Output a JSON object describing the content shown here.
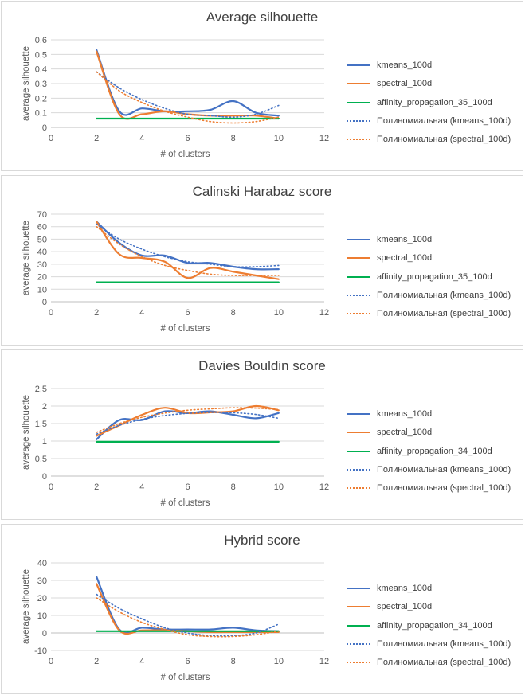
{
  "colors": {
    "kmeans": "#4472C4",
    "spectral": "#ED7D31",
    "affinity": "#00B050",
    "grid": "#d9d9d9",
    "axis": "#bfbfbf"
  },
  "chart_data": [
    {
      "type": "line",
      "title": "Average silhouette",
      "xlabel": "# of clusters",
      "ylabel": "average silhouette",
      "xlim": [
        0,
        12
      ],
      "ylim": [
        0,
        0.6
      ],
      "xticks": [
        0,
        2,
        4,
        6,
        8,
        10,
        12
      ],
      "yticks": [
        0,
        0.1,
        0.2,
        0.3,
        0.4,
        0.5,
        0.6
      ],
      "xtick_labels": [
        "0",
        "2",
        "4",
        "6",
        "8",
        "10",
        "12"
      ],
      "ytick_labels": [
        "0",
        "0,1",
        "0,2",
        "0,3",
        "0,4",
        "0,5",
        "0,6"
      ],
      "legend_position": "right",
      "x": [
        2,
        3,
        4,
        5,
        6,
        7,
        8,
        9,
        10
      ],
      "series": [
        {
          "name": "kmeans_100d",
          "style": "solid",
          "color": "kmeans",
          "values": [
            0.53,
            0.11,
            0.13,
            0.11,
            0.11,
            0.12,
            0.18,
            0.1,
            0.08
          ]
        },
        {
          "name": "spectral_100d",
          "style": "solid",
          "color": "spectral",
          "values": [
            0.52,
            0.09,
            0.09,
            0.11,
            0.09,
            0.08,
            0.08,
            0.08,
            0.06
          ]
        },
        {
          "name": "affinity_propagation_35_100d",
          "style": "solid",
          "color": "affinity",
          "values": [
            0.06,
            0.06,
            0.06,
            0.06,
            0.06,
            0.06,
            0.06,
            0.06,
            0.06
          ]
        },
        {
          "name": "Полиномиальная (kmeans_100d)",
          "style": "dotted",
          "color": "kmeans",
          "values": [
            0.38,
            0.27,
            0.19,
            0.13,
            0.09,
            0.08,
            0.07,
            0.09,
            0.15
          ]
        },
        {
          "name": "Полиномиальная (spectral_100d)",
          "style": "dotted",
          "color": "spectral",
          "values": [
            0.38,
            0.25,
            0.17,
            0.11,
            0.07,
            0.04,
            0.03,
            0.04,
            0.07
          ]
        }
      ]
    },
    {
      "type": "line",
      "title": "Calinski Harabaz score",
      "xlabel": "# of clusters",
      "ylabel": "average silhouette",
      "xlim": [
        0,
        12
      ],
      "ylim": [
        0,
        70
      ],
      "xticks": [
        0,
        2,
        4,
        6,
        8,
        10,
        12
      ],
      "yticks": [
        0,
        10,
        20,
        30,
        40,
        50,
        60,
        70
      ],
      "xtick_labels": [
        "0",
        "2",
        "4",
        "6",
        "8",
        "10",
        "12"
      ],
      "ytick_labels": [
        "0",
        "10",
        "20",
        "30",
        "40",
        "50",
        "60",
        "70"
      ],
      "legend_position": "right",
      "x": [
        2,
        3,
        4,
        5,
        6,
        7,
        8,
        9,
        10
      ],
      "series": [
        {
          "name": "kmeans_100d",
          "style": "solid",
          "color": "kmeans",
          "values": [
            64,
            47,
            37,
            37,
            31,
            31,
            28,
            26,
            26
          ]
        },
        {
          "name": "spectral_100d",
          "style": "solid",
          "color": "spectral",
          "values": [
            64,
            38,
            35,
            32,
            19,
            27,
            24,
            21,
            18
          ]
        },
        {
          "name": "affinity_propagation_35_100d",
          "style": "solid",
          "color": "affinity",
          "values": [
            15.5,
            15.5,
            15.5,
            15.5,
            15.5,
            15.5,
            15.5,
            15.5,
            15.5
          ]
        },
        {
          "name": "Полиномиальная (kmeans_100d)",
          "style": "dotted",
          "color": "kmeans",
          "values": [
            62,
            50,
            42,
            36,
            32,
            30,
            28,
            28,
            29
          ]
        },
        {
          "name": "Полиномиальная (spectral_100d)",
          "style": "dotted",
          "color": "spectral",
          "values": [
            60,
            46,
            36,
            29,
            25,
            22,
            21,
            21,
            21
          ]
        }
      ]
    },
    {
      "type": "line",
      "title": "Davies Bouldin score",
      "xlabel": "# of clusters",
      "ylabel": "average silhouette",
      "xlim": [
        0,
        12
      ],
      "ylim": [
        0,
        2.5
      ],
      "xticks": [
        0,
        2,
        4,
        6,
        8,
        10,
        12
      ],
      "yticks": [
        0,
        0.5,
        1,
        1.5,
        2,
        2.5
      ],
      "xtick_labels": [
        "0",
        "2",
        "4",
        "6",
        "8",
        "10",
        "12"
      ],
      "ytick_labels": [
        "0",
        "0,5",
        "1",
        "1,5",
        "2",
        "2,5"
      ],
      "legend_position": "right",
      "x": [
        2,
        3,
        4,
        5,
        6,
        7,
        8,
        9,
        10
      ],
      "series": [
        {
          "name": "kmeans_100d",
          "style": "solid",
          "color": "kmeans",
          "values": [
            1.05,
            1.6,
            1.6,
            1.85,
            1.8,
            1.85,
            1.75,
            1.65,
            1.8
          ]
        },
        {
          "name": "spectral_100d",
          "style": "solid",
          "color": "spectral",
          "values": [
            1.15,
            1.45,
            1.75,
            1.95,
            1.8,
            1.82,
            1.85,
            2.0,
            1.88
          ]
        },
        {
          "name": "affinity_propagation_34_100d",
          "style": "solid",
          "color": "affinity",
          "values": [
            0.98,
            0.98,
            0.98,
            0.98,
            0.98,
            0.98,
            0.98,
            0.98,
            0.98
          ]
        },
        {
          "name": "Полиномиальная (kmeans_100d)",
          "style": "dotted",
          "color": "kmeans",
          "values": [
            1.2,
            1.45,
            1.62,
            1.73,
            1.79,
            1.82,
            1.81,
            1.76,
            1.65
          ]
        },
        {
          "name": "Полиномиальная (spectral_100d)",
          "style": "dotted",
          "color": "spectral",
          "values": [
            1.25,
            1.5,
            1.68,
            1.8,
            1.88,
            1.92,
            1.95,
            1.94,
            1.9
          ]
        }
      ]
    },
    {
      "type": "line",
      "title": "Hybrid score",
      "xlabel": "# of clusters",
      "ylabel": "average silhouette",
      "xlim": [
        0,
        12
      ],
      "ylim": [
        -10,
        40
      ],
      "xticks": [
        0,
        2,
        4,
        6,
        8,
        10,
        12
      ],
      "yticks": [
        -10,
        0,
        10,
        20,
        30,
        40
      ],
      "xtick_labels": [
        "0",
        "2",
        "4",
        "6",
        "8",
        "10",
        "12"
      ],
      "ytick_labels": [
        "-10",
        "0",
        "10",
        "20",
        "30",
        "40"
      ],
      "legend_position": "right",
      "x": [
        2,
        3,
        4,
        5,
        6,
        7,
        8,
        9,
        10
      ],
      "series": [
        {
          "name": "kmeans_100d",
          "style": "solid",
          "color": "kmeans",
          "values": [
            32,
            2,
            3,
            2,
            2,
            2,
            3,
            1.5,
            1
          ]
        },
        {
          "name": "spectral_100d",
          "style": "solid",
          "color": "spectral",
          "values": [
            28,
            1.5,
            1.5,
            1.5,
            1,
            0.5,
            0.5,
            0.5,
            0.5
          ]
        },
        {
          "name": "affinity_propagation_34_100d",
          "style": "solid",
          "color": "affinity",
          "values": [
            1,
            1,
            1,
            1,
            1,
            1,
            1,
            1,
            1
          ]
        },
        {
          "name": "Полиномиальная (kmeans_100d)",
          "style": "dotted",
          "color": "kmeans",
          "values": [
            22,
            14,
            8,
            3,
            0,
            -1.5,
            -1.5,
            0,
            5
          ]
        },
        {
          "name": "Полиномиальная (spectral_100d)",
          "style": "dotted",
          "color": "spectral",
          "values": [
            20,
            12,
            6,
            2,
            -1,
            -2,
            -2,
            -1,
            1
          ]
        }
      ]
    }
  ]
}
